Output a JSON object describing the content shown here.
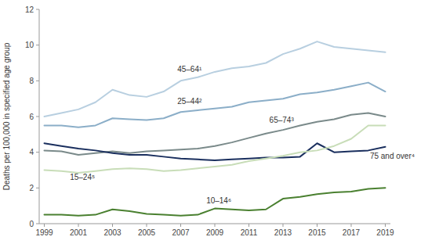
{
  "chart_data": {
    "type": "line",
    "ylabel": "Deaths per 100,000 in specified age group",
    "x": [
      1999,
      2000,
      2001,
      2002,
      2003,
      2004,
      2005,
      2006,
      2007,
      2008,
      2009,
      2010,
      2011,
      2012,
      2013,
      2014,
      2015,
      2016,
      2017,
      2018,
      2019
    ],
    "series": [
      {
        "color": "#b8cfe0",
        "values": [
          6.0,
          6.2,
          6.4,
          6.8,
          7.5,
          7.2,
          7.1,
          7.4,
          8.0,
          8.2,
          8.5,
          8.7,
          8.8,
          9.0,
          9.5,
          9.8,
          10.2,
          9.9,
          9.8,
          9.7,
          9.6
        ]
      },
      {
        "color": "#8baec8",
        "values": [
          5.5,
          5.5,
          5.4,
          5.5,
          5.9,
          5.85,
          5.8,
          5.9,
          6.25,
          6.35,
          6.45,
          6.55,
          6.8,
          6.9,
          7.0,
          7.25,
          7.35,
          7.5,
          7.7,
          7.9,
          7.4
        ]
      },
      {
        "color": "#7a8a8a",
        "values": [
          4.1,
          4.05,
          3.85,
          3.95,
          4.05,
          3.95,
          4.05,
          4.1,
          4.15,
          4.2,
          4.35,
          4.55,
          4.8,
          5.05,
          5.25,
          5.5,
          5.7,
          5.85,
          6.1,
          6.2,
          6.0
        ]
      },
      {
        "color": "#1a2f5e",
        "values": [
          4.5,
          4.35,
          4.2,
          4.1,
          3.95,
          3.85,
          3.85,
          3.75,
          3.65,
          3.6,
          3.55,
          3.6,
          3.65,
          3.7,
          3.7,
          3.75,
          4.5,
          4.0,
          4.05,
          4.1,
          4.3
        ]
      },
      {
        "color": "#c8ddb8",
        "values": [
          3.0,
          2.95,
          2.85,
          2.95,
          3.05,
          3.1,
          3.05,
          2.95,
          3.0,
          3.1,
          3.2,
          3.3,
          3.5,
          3.65,
          3.8,
          4.0,
          4.1,
          4.35,
          4.75,
          5.5,
          5.5
        ]
      },
      {
        "color": "#4a8030",
        "values": [
          0.5,
          0.5,
          0.45,
          0.5,
          0.8,
          0.7,
          0.55,
          0.5,
          0.45,
          0.5,
          0.85,
          0.8,
          0.75,
          0.8,
          1.4,
          1.5,
          1.65,
          1.75,
          1.8,
          1.95,
          2.0
        ]
      }
    ],
    "annotations": [
      {
        "text": "45–64¹",
        "x": 2006.8,
        "y": 8.4
      },
      {
        "text": "25–44²",
        "x": 2006.8,
        "y": 6.6
      },
      {
        "text": "65–74³",
        "x": 2012.2,
        "y": 5.55
      },
      {
        "text": "75 and over⁴",
        "x": 2018.1,
        "y": 3.55
      },
      {
        "text": "15–24⁵",
        "x": 2000.5,
        "y": 2.35
      },
      {
        "text": "10–14⁶",
        "x": 2008.5,
        "y": 1.05
      }
    ],
    "xlim": [
      1998.7,
      2019.3
    ],
    "ylim": [
      0,
      12
    ],
    "xticks": [
      1999,
      2001,
      2003,
      2005,
      2007,
      2009,
      2011,
      2013,
      2015,
      2017,
      2019
    ],
    "yticks": [
      0,
      2,
      4,
      6,
      8,
      10,
      12
    ],
    "grid": false
  }
}
